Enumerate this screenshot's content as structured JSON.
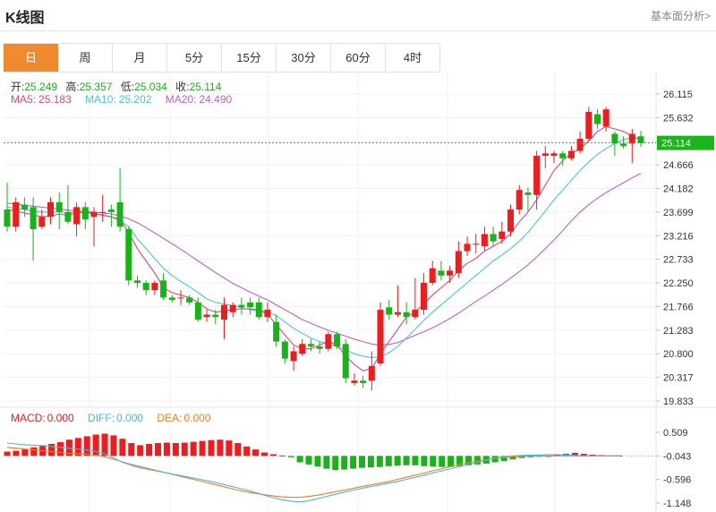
{
  "header": {
    "title": "K线图",
    "link": "基本面分析>"
  },
  "tabs": [
    {
      "label": "日",
      "active": true
    },
    {
      "label": "周"
    },
    {
      "label": "月"
    },
    {
      "label": "5分"
    },
    {
      "label": "15分"
    },
    {
      "label": "30分"
    },
    {
      "label": "60分"
    },
    {
      "label": "4时"
    }
  ],
  "ohlc": {
    "open_label": "开:",
    "open": "25.249",
    "high_label": "高:",
    "high": "25.357",
    "low_label": "低:",
    "low": "25.034",
    "close_label": "收:",
    "close": "25.114"
  },
  "ma": {
    "ma5_label": "MA5:",
    "ma5": "25.183",
    "ma10_label": "MA10:",
    "ma10": "25.202",
    "ma20_label": "MA20:",
    "ma20": "24.490"
  },
  "macd": {
    "macd_label": "MACD:",
    "macd": "0.000",
    "diff_label": "DIFF:",
    "diff": "0.000",
    "dea_label": "DEA:",
    "dea": "0.000"
  },
  "colors": {
    "up": "#ee1c1c",
    "down": "#17b417",
    "ma5": "#e0487a",
    "ma10": "#4cc4dc",
    "ma20": "#c060c8",
    "diff": "#4cb4e6",
    "dea": "#f07d1e",
    "price_tag": "#1ab51a"
  },
  "chart_data": [
    {
      "type": "candlestick",
      "y_ticks": [
        "26.115",
        "25.632",
        "25.149",
        "24.666",
        "24.182",
        "23.699",
        "23.216",
        "22.733",
        "22.250",
        "21.766",
        "21.283",
        "20.800",
        "20.317",
        "19.833"
      ],
      "ylim": [
        19.833,
        26.115
      ],
      "current_price": "25.114",
      "candles": [
        [
          23.75,
          23.4,
          24.3,
          23.3
        ],
        [
          23.4,
          23.9,
          24.0,
          23.3
        ],
        [
          23.85,
          23.75,
          24.0,
          23.6
        ],
        [
          23.8,
          23.35,
          24.0,
          22.7
        ],
        [
          23.4,
          23.6,
          23.75,
          23.35
        ],
        [
          23.6,
          23.9,
          24.0,
          23.45
        ],
        [
          23.9,
          23.7,
          24.1,
          23.35
        ],
        [
          23.7,
          23.5,
          24.25,
          23.45
        ],
        [
          23.45,
          23.8,
          23.9,
          23.2
        ],
        [
          23.8,
          23.55,
          23.9,
          23.35
        ],
        [
          23.6,
          23.7,
          23.8,
          23.0
        ],
        [
          23.7,
          23.7,
          24.05,
          23.5
        ],
        [
          23.75,
          23.7,
          23.85,
          23.4
        ],
        [
          23.9,
          23.4,
          24.6,
          23.3
        ],
        [
          23.35,
          22.3,
          23.4,
          22.2
        ],
        [
          22.3,
          22.25,
          22.4,
          22.15
        ],
        [
          22.25,
          22.1,
          22.3,
          22.0
        ],
        [
          22.1,
          22.25,
          22.3,
          22.0
        ],
        [
          22.3,
          21.95,
          22.45,
          21.9
        ],
        [
          21.95,
          21.9,
          22.0,
          21.85
        ],
        [
          21.95,
          21.95,
          22.1,
          21.8
        ],
        [
          21.95,
          21.85,
          22.0,
          21.8
        ],
        [
          21.85,
          21.5,
          21.95,
          21.45
        ],
        [
          21.55,
          21.6,
          21.7,
          21.45
        ],
        [
          21.6,
          21.55,
          21.7,
          21.4
        ],
        [
          21.5,
          21.8,
          21.95,
          21.1
        ],
        [
          21.65,
          21.8,
          21.85,
          21.55
        ],
        [
          21.8,
          21.75,
          21.95,
          21.6
        ],
        [
          21.85,
          21.75,
          21.95,
          21.6
        ],
        [
          21.85,
          21.55,
          21.95,
          21.5
        ],
        [
          21.55,
          21.7,
          21.85,
          21.45
        ],
        [
          21.45,
          21.05,
          21.6,
          20.95
        ],
        [
          21.05,
          20.7,
          21.1,
          20.6
        ],
        [
          20.65,
          20.85,
          20.95,
          20.45
        ],
        [
          20.8,
          21.0,
          21.1,
          20.75
        ],
        [
          21.0,
          20.95,
          21.1,
          20.85
        ],
        [
          20.95,
          20.9,
          21.05,
          20.8
        ],
        [
          20.9,
          21.2,
          21.25,
          20.85
        ],
        [
          21.2,
          20.95,
          21.25,
          20.9
        ],
        [
          21.0,
          20.3,
          21.1,
          20.2
        ],
        [
          20.2,
          20.25,
          20.4,
          20.15
        ],
        [
          20.25,
          20.2,
          20.35,
          20.1
        ],
        [
          20.25,
          20.55,
          20.85,
          20.05
        ],
        [
          20.6,
          21.7,
          21.85,
          20.55
        ],
        [
          21.75,
          21.6,
          21.9,
          21.5
        ],
        [
          21.6,
          21.65,
          22.2,
          21.55
        ],
        [
          21.65,
          21.55,
          21.85,
          21.4
        ],
        [
          21.55,
          21.7,
          22.35,
          21.5
        ],
        [
          21.7,
          22.25,
          22.45,
          21.6
        ],
        [
          22.25,
          22.55,
          22.7,
          22.2
        ],
        [
          22.5,
          22.4,
          22.7,
          22.3
        ],
        [
          22.4,
          22.5,
          22.6,
          22.25
        ],
        [
          22.45,
          22.9,
          23.1,
          22.35
        ],
        [
          22.9,
          23.05,
          23.2,
          22.8
        ],
        [
          23.05,
          23.05,
          23.25,
          22.85
        ],
        [
          23.0,
          23.25,
          23.4,
          22.9
        ],
        [
          23.25,
          23.1,
          23.4,
          23.0
        ],
        [
          23.15,
          23.3,
          23.5,
          23.05
        ],
        [
          23.3,
          23.75,
          23.85,
          23.2
        ],
        [
          23.75,
          24.15,
          24.25,
          23.65
        ],
        [
          24.1,
          24.05,
          24.2,
          23.7
        ],
        [
          24.05,
          24.85,
          24.95,
          23.75
        ],
        [
          24.85,
          24.9,
          25.05,
          24.6
        ],
        [
          24.85,
          24.9,
          24.95,
          24.7
        ],
        [
          24.9,
          24.8,
          24.95,
          24.65
        ],
        [
          24.8,
          24.95,
          25.05,
          24.75
        ],
        [
          24.95,
          25.2,
          25.35,
          24.9
        ],
        [
          25.2,
          25.75,
          25.85,
          25.15
        ],
        [
          25.7,
          25.5,
          25.8,
          25.4
        ],
        [
          25.45,
          25.8,
          25.85,
          25.35
        ],
        [
          25.3,
          25.1,
          25.35,
          24.85
        ],
        [
          25.1,
          25.05,
          25.25,
          25.0
        ],
        [
          25.1,
          25.3,
          25.4,
          24.7
        ],
        [
          25.25,
          25.11,
          25.36,
          25.03
        ]
      ],
      "ma5": [
        23.75,
        23.72,
        23.68,
        23.64,
        23.6,
        23.62,
        23.66,
        23.63,
        23.68,
        23.7,
        23.68,
        23.63,
        23.6,
        23.55,
        23.28,
        22.95,
        22.7,
        22.45,
        22.15,
        22.05,
        22.0,
        21.95,
        21.85,
        21.72,
        21.65,
        21.68,
        21.7,
        21.72,
        21.72,
        21.7,
        21.6,
        21.4,
        21.18,
        20.98,
        20.9,
        20.9,
        20.98,
        21.05,
        20.98,
        20.75,
        20.58,
        20.45,
        20.5,
        20.8,
        21.05,
        21.3,
        21.55,
        21.65,
        21.82,
        22.0,
        22.15,
        22.3,
        22.5,
        22.65,
        22.75,
        22.9,
        23.0,
        23.1,
        23.25,
        23.5,
        23.7,
        23.95,
        24.25,
        24.55,
        24.75,
        24.9,
        25.0,
        25.15,
        25.35,
        25.45,
        25.4,
        25.35,
        25.25,
        25.18
      ],
      "ma10": [
        23.8,
        23.78,
        23.75,
        23.72,
        23.7,
        23.7,
        23.7,
        23.69,
        23.69,
        23.68,
        23.66,
        23.64,
        23.6,
        23.52,
        23.4,
        23.15,
        22.95,
        22.75,
        22.55,
        22.4,
        22.28,
        22.17,
        22.05,
        21.92,
        21.85,
        21.82,
        21.78,
        21.74,
        21.7,
        21.68,
        21.66,
        21.58,
        21.45,
        21.32,
        21.22,
        21.12,
        21.05,
        21.0,
        20.95,
        20.88,
        20.8,
        20.75,
        20.72,
        20.74,
        20.82,
        20.95,
        21.12,
        21.3,
        21.48,
        21.65,
        21.8,
        21.95,
        22.1,
        22.25,
        22.4,
        22.55,
        22.7,
        22.82,
        22.95,
        23.1,
        23.28,
        23.5,
        23.72,
        23.95,
        24.15,
        24.35,
        24.55,
        24.72,
        24.88,
        25.0,
        25.1,
        25.18,
        25.22,
        25.2
      ],
      "ma20": [
        23.88,
        23.86,
        23.84,
        23.82,
        23.8,
        23.78,
        23.76,
        23.74,
        23.72,
        23.71,
        23.7,
        23.68,
        23.66,
        23.62,
        23.56,
        23.48,
        23.38,
        23.27,
        23.16,
        23.05,
        22.94,
        22.82,
        22.7,
        22.58,
        22.46,
        22.35,
        22.24,
        22.15,
        22.06,
        21.98,
        21.9,
        21.8,
        21.7,
        21.6,
        21.5,
        21.42,
        21.35,
        21.28,
        21.22,
        21.16,
        21.1,
        21.05,
        21.0,
        20.98,
        20.99,
        21.03,
        21.1,
        21.18,
        21.25,
        21.33,
        21.42,
        21.52,
        21.63,
        21.75,
        21.87,
        21.98,
        22.1,
        22.22,
        22.35,
        22.48,
        22.62,
        22.78,
        22.95,
        23.13,
        23.32,
        23.52,
        23.7,
        23.85,
        23.98,
        24.1,
        24.2,
        24.3,
        24.4,
        24.49
      ]
    },
    {
      "type": "bar",
      "name": "MACD",
      "y_ticks": [
        "0.509",
        "-0.043",
        "-0.596",
        "-1.148"
      ],
      "ylim": [
        -1.148,
        0.509
      ],
      "histogram": [
        0.1,
        0.12,
        0.15,
        0.2,
        0.25,
        0.28,
        0.32,
        0.38,
        0.42,
        0.46,
        0.5,
        0.52,
        0.48,
        0.4,
        0.3,
        0.25,
        0.28,
        0.3,
        0.31,
        0.3,
        0.31,
        0.33,
        0.35,
        0.37,
        0.38,
        0.36,
        0.3,
        0.22,
        0.15,
        0.08,
        0.04,
        0.01,
        -0.03,
        -0.15,
        -0.2,
        -0.25,
        -0.3,
        -0.33,
        -0.32,
        -0.3,
        -0.28,
        -0.27,
        -0.26,
        -0.24,
        -0.23,
        -0.22,
        -0.22,
        -0.24,
        -0.25,
        -0.26,
        -0.26,
        -0.24,
        -0.22,
        -0.2,
        -0.18,
        -0.15,
        -0.12,
        -0.08,
        -0.05,
        -0.03,
        -0.01,
        0.0,
        0.02,
        0.05,
        0.07,
        0.05,
        0.03,
        0.02,
        0.01,
        0.01
      ],
      "diff": [
        0.3,
        0.28,
        0.26,
        0.25,
        0.24,
        0.22,
        0.2,
        0.18,
        0.16,
        0.14,
        0.1,
        0.05,
        -0.05,
        -0.15,
        -0.22,
        -0.28,
        -0.32,
        -0.36,
        -0.4,
        -0.44,
        -0.48,
        -0.52,
        -0.56,
        -0.6,
        -0.65,
        -0.7,
        -0.75,
        -0.8,
        -0.86,
        -0.92,
        -0.98,
        -1.03,
        -1.06,
        -1.08,
        -1.05,
        -1.0,
        -0.95,
        -0.9,
        -0.85,
        -0.8,
        -0.76,
        -0.72,
        -0.68,
        -0.64,
        -0.6,
        -0.55,
        -0.5,
        -0.45,
        -0.4,
        -0.35,
        -0.3,
        -0.25,
        -0.2,
        -0.15,
        -0.1,
        -0.05,
        -0.02,
        0.0,
        0.01,
        0.02,
        0.02,
        0.03,
        0.03,
        0.02,
        0.01,
        0.0,
        0.0,
        0.0,
        0.0,
        0.0
      ],
      "dea": [
        0.2,
        0.18,
        0.16,
        0.14,
        0.12,
        0.1,
        0.08,
        0.06,
        0.05,
        0.04,
        0.02,
        -0.02,
        -0.08,
        -0.14,
        -0.2,
        -0.25,
        -0.3,
        -0.35,
        -0.4,
        -0.45,
        -0.5,
        -0.55,
        -0.6,
        -0.65,
        -0.7,
        -0.75,
        -0.8,
        -0.84,
        -0.88,
        -0.91,
        -0.94,
        -0.96,
        -0.97,
        -0.97,
        -0.95,
        -0.92,
        -0.88,
        -0.84,
        -0.8,
        -0.76,
        -0.72,
        -0.68,
        -0.64,
        -0.6,
        -0.55,
        -0.5,
        -0.45,
        -0.4,
        -0.35,
        -0.3,
        -0.25,
        -0.2,
        -0.16,
        -0.12,
        -0.09,
        -0.06,
        -0.04,
        -0.02,
        -0.01,
        0.0,
        0.0,
        0.0,
        0.0,
        0.0,
        0.0,
        0.0,
        0.0,
        0.0,
        0.0,
        0.0
      ]
    }
  ]
}
